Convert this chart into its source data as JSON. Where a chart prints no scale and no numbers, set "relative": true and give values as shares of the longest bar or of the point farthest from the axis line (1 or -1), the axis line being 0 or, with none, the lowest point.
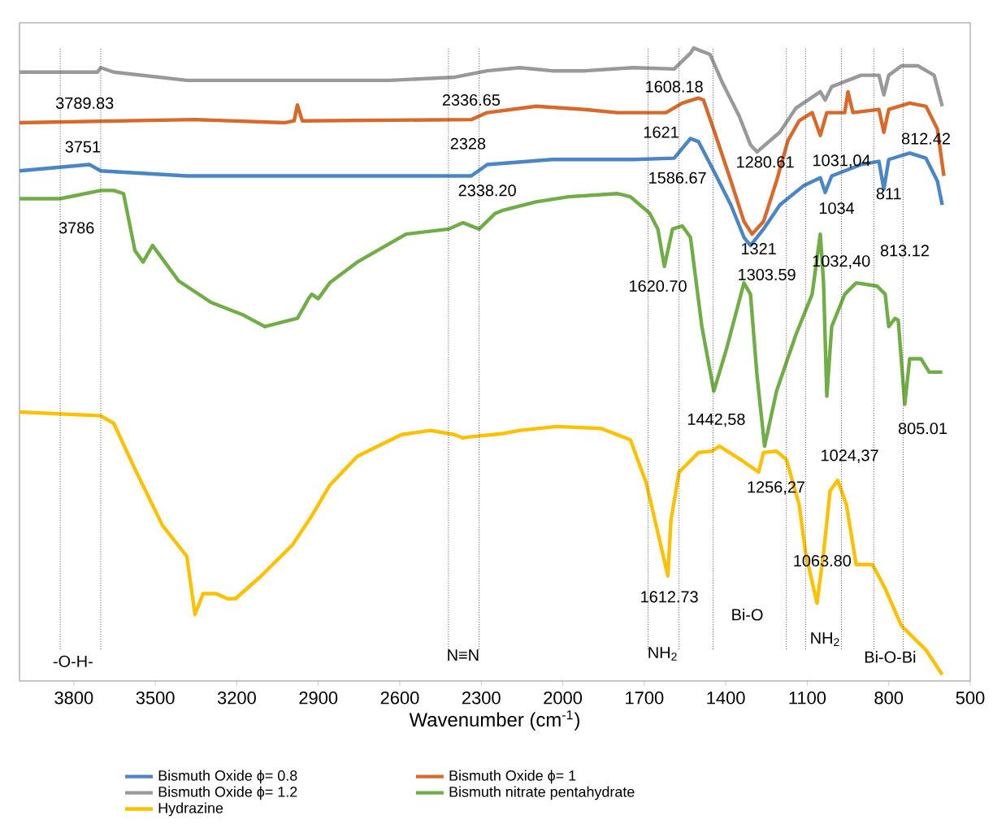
{
  "chart_data": {
    "type": "line",
    "relative": true,
    "xlabel": "Wavenumber (cm$^{-1}$)",
    "xlim": [
      4000,
      500
    ],
    "xticks": [
      3800,
      3500,
      3200,
      2900,
      2600,
      2300,
      2000,
      1700,
      1400,
      1100,
      800,
      500
    ],
    "legend": "bottom",
    "series": [
      {
        "name": "Bismuth Oxide ϕ= 0.8",
        "color": "#4a86c5",
        "x": [
          4000,
          3743,
          3701,
          3384,
          2337,
          2278,
          2039,
          1740,
          1590,
          1530,
          1500,
          1441,
          1381,
          1333,
          1309,
          1261,
          1201,
          1112,
          1052,
          1034,
          1010,
          902,
          836,
          818,
          800,
          723,
          663,
          621,
          603
        ],
        "values": [
          0.806,
          0.816,
          0.806,
          0.798,
          0.798,
          0.816,
          0.824,
          0.824,
          0.826,
          0.857,
          0.852,
          0.803,
          0.752,
          0.701,
          0.688,
          0.714,
          0.752,
          0.783,
          0.795,
          0.772,
          0.798,
          0.816,
          0.821,
          0.777,
          0.824,
          0.834,
          0.826,
          0.79,
          0.752
        ]
      },
      {
        "name": "Bismuth Oxide ϕ= 1",
        "color": "#d9692a",
        "x": [
          4000,
          3354,
          3025,
          2989,
          2977,
          2959,
          2337,
          2278,
          2098,
          1919,
          1799,
          1620,
          1560,
          1500,
          1482,
          1441,
          1381,
          1333,
          1303,
          1261,
          1213,
          1171,
          1130,
          1082,
          1052,
          1028,
          962,
          950,
          932,
          836,
          818,
          800,
          723,
          663,
          621,
          597
        ],
        "values": [
          0.882,
          0.887,
          0.882,
          0.885,
          0.91,
          0.885,
          0.887,
          0.898,
          0.908,
          0.903,
          0.898,
          0.898,
          0.913,
          0.921,
          0.918,
          0.867,
          0.79,
          0.726,
          0.706,
          0.726,
          0.79,
          0.854,
          0.885,
          0.898,
          0.862,
          0.898,
          0.898,
          0.931,
          0.898,
          0.903,
          0.867,
          0.903,
          0.913,
          0.908,
          0.872,
          0.798
        ]
      },
      {
        "name": "Bismuth Oxide ϕ= 1.2",
        "color": "#999999",
        "x": [
          4000,
          3713,
          3701,
          3653,
          3384,
          2637,
          2397,
          2278,
          2158,
          2039,
          1919,
          1740,
          1590,
          1530,
          1518,
          1458,
          1411,
          1351,
          1309,
          1285,
          1201,
          1142,
          1052,
          1034,
          1010,
          902,
          836,
          818,
          800,
          753,
          693,
          633,
          603
        ],
        "values": [
          0.962,
          0.962,
          0.969,
          0.962,
          0.949,
          0.949,
          0.954,
          0.964,
          0.969,
          0.964,
          0.964,
          0.969,
          0.967,
          0.992,
          1.0,
          0.99,
          0.944,
          0.893,
          0.847,
          0.836,
          0.867,
          0.905,
          0.931,
          0.918,
          0.939,
          0.957,
          0.957,
          0.926,
          0.957,
          0.972,
          0.972,
          0.957,
          0.908
        ]
      },
      {
        "name": "Bismuth nitrate pentahydrate",
        "color": "#70ad47",
        "x": [
          4000,
          3850,
          3701,
          3653,
          3617,
          3575,
          3545,
          3510,
          3414,
          3294,
          3175,
          3097,
          2977,
          2936,
          2924,
          2900,
          2858,
          2756,
          2577,
          2421,
          2367,
          2308,
          2248,
          2218,
          2098,
          1979,
          1799,
          1751,
          1680,
          1650,
          1626,
          1596,
          1560,
          1530,
          1488,
          1444,
          1399,
          1333,
          1309,
          1285,
          1257,
          1213,
          1142,
          1082,
          1052,
          1040,
          1028,
          1010,
          962,
          920,
          843,
          813,
          800,
          777,
          765,
          741,
          723,
          681,
          651,
          603
        ],
        "values": [
          0.762,
          0.762,
          0.775,
          0.775,
          0.77,
          0.68,
          0.662,
          0.688,
          0.632,
          0.598,
          0.578,
          0.56,
          0.573,
          0.604,
          0.611,
          0.604,
          0.629,
          0.662,
          0.706,
          0.714,
          0.724,
          0.714,
          0.739,
          0.744,
          0.757,
          0.765,
          0.77,
          0.765,
          0.739,
          0.714,
          0.655,
          0.714,
          0.719,
          0.701,
          0.56,
          0.458,
          0.522,
          0.629,
          0.611,
          0.483,
          0.371,
          0.458,
          0.547,
          0.611,
          0.706,
          0.629,
          0.45,
          0.56,
          0.611,
          0.629,
          0.624,
          0.611,
          0.56,
          0.573,
          0.57,
          0.437,
          0.509,
          0.509,
          0.488,
          0.488
        ]
      },
      {
        "name": "Hydrazine",
        "color": "#ffc000",
        "x": [
          4000,
          3701,
          3653,
          3575,
          3474,
          3384,
          3354,
          3324,
          3276,
          3235,
          3205,
          3115,
          2995,
          2924,
          2858,
          2756,
          2595,
          2487,
          2397,
          2367,
          2337,
          2218,
          2158,
          2021,
          1859,
          1751,
          1692,
          1613,
          1602,
          1572,
          1500,
          1452,
          1423,
          1339,
          1279,
          1261,
          1213,
          1177,
          1130,
          1106,
          1064,
          1040,
          1016,
          988,
          956,
          920,
          860,
          813,
          753,
          663,
          603
        ],
        "values": [
          0.425,
          0.419,
          0.407,
          0.335,
          0.246,
          0.197,
          0.105,
          0.138,
          0.138,
          0.13,
          0.13,
          0.164,
          0.215,
          0.261,
          0.309,
          0.355,
          0.389,
          0.396,
          0.389,
          0.384,
          0.386,
          0.391,
          0.396,
          0.402,
          0.399,
          0.381,
          0.312,
          0.166,
          0.253,
          0.33,
          0.361,
          0.363,
          0.371,
          0.348,
          0.33,
          0.361,
          0.363,
          0.35,
          0.279,
          0.202,
          0.123,
          0.202,
          0.3,
          0.317,
          0.279,
          0.184,
          0.184,
          0.146,
          0.087,
          0.049,
          0.01
        ]
      }
    ],
    "ref_lines": [
      {
        "axis": "x",
        "value": 3850,
        "line_style": "dotted"
      },
      {
        "axis": "x",
        "value": 3701,
        "line_style": "dotted"
      },
      {
        "axis": "x",
        "value": 2421,
        "line_style": "dotted"
      },
      {
        "axis": "x",
        "value": 2308,
        "line_style": "dotted"
      },
      {
        "axis": "x",
        "value": 1686,
        "line_style": "dotted"
      },
      {
        "axis": "x",
        "value": 1572,
        "line_style": "dotted"
      },
      {
        "axis": "x",
        "value": 1447,
        "line_style": "dotted"
      },
      {
        "axis": "x",
        "value": 1177,
        "line_style": "dotted"
      },
      {
        "axis": "x",
        "value": 1106,
        "line_style": "dotted"
      },
      {
        "axis": "x",
        "value": 974,
        "line_style": "dotted"
      },
      {
        "axis": "x",
        "value": 855,
        "line_style": "dotted"
      },
      {
        "axis": "x",
        "value": 747,
        "line_style": "dotted"
      }
    ],
    "annotations": [
      "3789.83",
      "3751",
      "3786",
      "2336.65",
      "2328",
      "2338.20",
      "1608.18",
      "1621",
      "1586.67",
      "1280.61",
      "1031,04",
      "812.42",
      "1034",
      "811",
      "1321",
      "1303.59",
      "1032,40",
      "813.12",
      "1620.70",
      "1442,58",
      "805.01",
      "1024,37",
      "1256,27",
      "1063.80",
      "1612.73",
      "-O-H-",
      "N≡N",
      "NH$_{2}$",
      "Bi-O",
      "NH$_{2}$",
      "Bi-O-Bi"
    ]
  }
}
